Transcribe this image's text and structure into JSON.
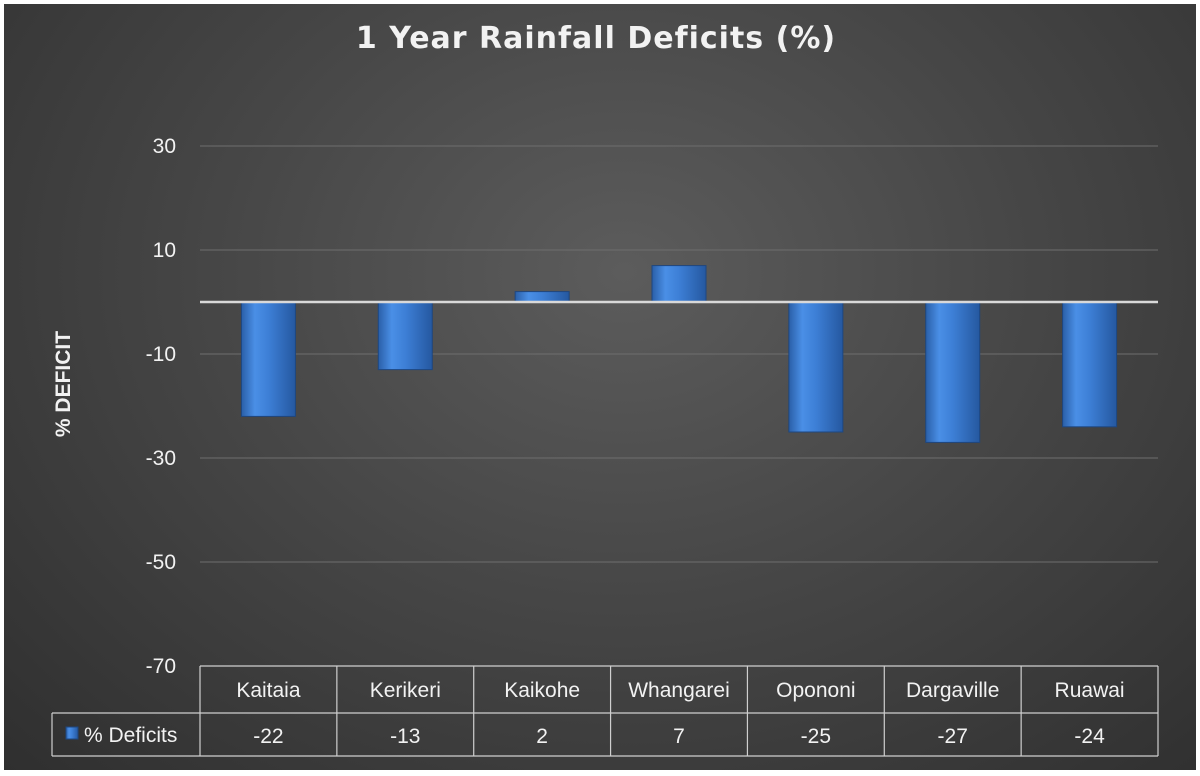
{
  "chart_data": {
    "type": "bar",
    "title": "1 Year Rainfall Deficits (%)",
    "ylabel": "% DEFICIT",
    "xlabel": "",
    "categories": [
      "Kaitaia",
      "Kerikeri",
      "Kaikohe",
      "Whangarei",
      "Opononi",
      "Dargaville",
      "Ruawai"
    ],
    "series": [
      {
        "name": "% Deficits",
        "values": [
          -22,
          -13,
          2,
          7,
          -25,
          -27,
          -24
        ],
        "color": "#3d7fd6"
      }
    ],
    "value_labels": [
      "-22",
      "-13",
      "2",
      "7",
      "-25",
      "-27",
      "-24"
    ],
    "ylim": [
      -70,
      30
    ],
    "yticks": [
      30,
      10,
      -10,
      -30,
      -50,
      -70
    ],
    "ytick_labels": [
      "30",
      "10",
      "-10",
      "-30",
      "-50",
      "-70"
    ],
    "grid": true,
    "data_table": true,
    "legend_placement": "in data table",
    "background": "#474747",
    "text_color": "#f2f2f2"
  }
}
